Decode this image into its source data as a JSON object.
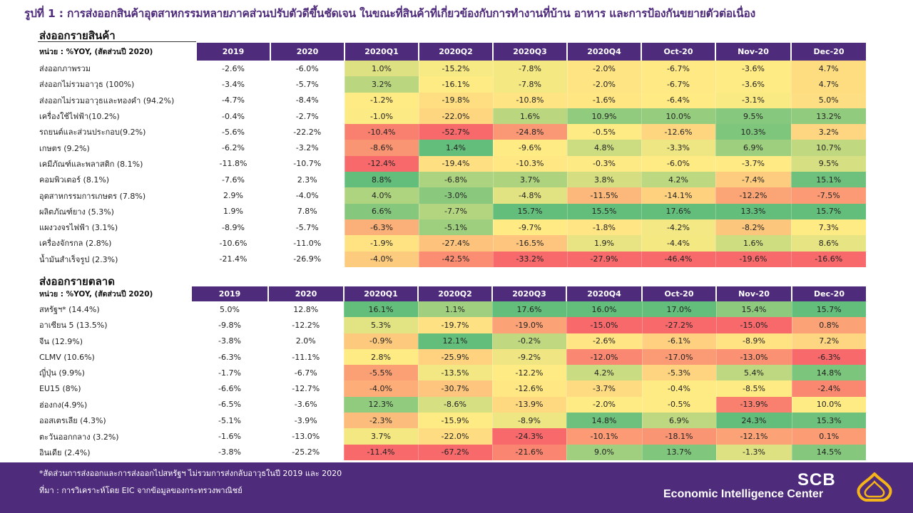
{
  "title": "รูปที่ 1 : การส่งออกสินค้าอุตสาหกรรมหลายภาคส่วนปรับตัวดีขึ้นชัดเจน ในขณะที่สินค้าที่เกี่ยวข้องกับการทำงานที่บ้าน อาหาร และการป้องกันขยายตัวต่อเนื่อง",
  "colors": {
    "brand": "#4f2b7c",
    "high": "#63be7b",
    "mid": "#ffeb84",
    "low": "#f8696b"
  },
  "products": {
    "section_title": "ส่งออกรายสินค้า",
    "unit_label": "หน่วย : %YOY, (สัดส่วนปี 2020)",
    "columns": [
      "2019",
      "2020",
      "2020Q1",
      "2020Q2",
      "2020Q3",
      "2020Q4",
      "Oct-20",
      "Nov-20",
      "Dec-20"
    ],
    "rows": [
      {
        "label": "ส่งออกภาพรวม",
        "values": [
          "-2.6%",
          "-6.0%",
          "1.0%",
          "-15.2%",
          "-7.8%",
          "-2.0%",
          "-6.7%",
          "-3.6%",
          "4.7%"
        ]
      },
      {
        "label": "ส่งออกไม่รวมอาวุธ (100%)",
        "values": [
          "-3.4%",
          "-5.7%",
          "3.2%",
          "-16.1%",
          "-7.8%",
          "-2.0%",
          "-6.7%",
          "-3.6%",
          "4.7%"
        ]
      },
      {
        "label": "ส่งออกไม่รวมอาวุธและทองคำ (94.2%)",
        "values": [
          "-4.7%",
          "-8.4%",
          "-1.2%",
          "-19.8%",
          "-10.8%",
          "-1.6%",
          "-6.4%",
          "-3.1%",
          "5.0%"
        ]
      },
      {
        "label": "เครื่องใช้ไฟฟ้า(10.2%)",
        "values": [
          "-0.4%",
          "-2.7%",
          "-1.0%",
          "-22.0%",
          "1.6%",
          "10.9%",
          "10.0%",
          "9.5%",
          "13.2%"
        ]
      },
      {
        "label": "รถยนต์และส่วนประกอบ(9.2%)",
        "values": [
          "-5.6%",
          "-22.2%",
          "-10.4%",
          "-52.7%",
          "-24.8%",
          "-0.5%",
          "-12.6%",
          "10.3%",
          "3.2%"
        ]
      },
      {
        "label": "เกษตร (9.2%)",
        "values": [
          "-6.2%",
          "-3.2%",
          "-8.6%",
          "1.4%",
          "-9.6%",
          "4.8%",
          "-3.3%",
          "6.9%",
          "10.7%"
        ]
      },
      {
        "label": "เคมีภัณฑ์และพลาสติก (8.1%)",
        "values": [
          "-11.8%",
          "-10.7%",
          "-12.4%",
          "-19.4%",
          "-10.3%",
          "-0.3%",
          "-6.0%",
          "-3.7%",
          "9.5%"
        ]
      },
      {
        "label": "คอมพิวเตอร์ (8.1%)",
        "values": [
          "-7.6%",
          "2.3%",
          "8.8%",
          "-6.8%",
          "3.7%",
          "3.8%",
          "4.2%",
          "-7.4%",
          "15.1%"
        ]
      },
      {
        "label": "อุตสาหกรรมการเกษตร (7.8%)",
        "values": [
          "2.9%",
          "-4.0%",
          "4.0%",
          "-3.0%",
          "-4.8%",
          "-11.5%",
          "-14.1%",
          "-12.2%",
          "-7.5%"
        ]
      },
      {
        "label": "ผลิตภัณฑ์ยาง (5.3%)",
        "values": [
          "1.9%",
          "7.8%",
          "6.6%",
          "-7.7%",
          "15.7%",
          "15.5%",
          "17.6%",
          "13.3%",
          "15.7%"
        ]
      },
      {
        "label": "แผงวงจรไฟฟ้า (3.1%)",
        "values": [
          "-8.9%",
          "-5.7%",
          "-6.3%",
          "-5.1%",
          "-9.7%",
          "-1.8%",
          "-4.2%",
          "-8.2%",
          "7.3%"
        ]
      },
      {
        "label": "เครื่องจักรกล (2.8%)",
        "values": [
          "-10.6%",
          "-11.0%",
          "-1.9%",
          "-27.4%",
          "-16.5%",
          "1.9%",
          "-4.4%",
          "1.6%",
          "8.6%"
        ]
      },
      {
        "label": "น้ำมันสำเร็จรูป (2.3%)",
        "values": [
          "-21.4%",
          "-26.9%",
          "-4.0%",
          "-42.5%",
          "-33.2%",
          "-27.9%",
          "-46.4%",
          "-19.6%",
          "-16.6%"
        ]
      }
    ]
  },
  "markets": {
    "section_title": "ส่งออกรายตลาด",
    "unit_label": "หน่วย : %YOY, (สัดส่วนปี 2020)",
    "columns": [
      "2019",
      "2020",
      "2020Q1",
      "2020Q2",
      "2020Q3",
      "2020Q4",
      "Oct-20",
      "Nov-20",
      "Dec-20"
    ],
    "rows": [
      {
        "label": "สหรัฐฯ* (14.4%)",
        "values": [
          "5.0%",
          "12.8%",
          "16.1%",
          "1.1%",
          "17.6%",
          "16.0%",
          "17.0%",
          "15.4%",
          "15.7%"
        ]
      },
      {
        "label": "อาเซียน 5 (13.5%)",
        "values": [
          "-9.8%",
          "-12.2%",
          "5.3%",
          "-19.7%",
          "-19.0%",
          "-15.0%",
          "-27.2%",
          "-15.0%",
          "0.8%"
        ]
      },
      {
        "label": "จีน (12.9%)",
        "values": [
          "-3.8%",
          "2.0%",
          "-0.9%",
          "12.1%",
          "-0.2%",
          "-2.6%",
          "-6.1%",
          "-8.9%",
          "7.2%"
        ]
      },
      {
        "label": "CLMV (10.6%)",
        "values": [
          "-6.3%",
          "-11.1%",
          "2.8%",
          "-25.9%",
          "-9.2%",
          "-12.0%",
          "-17.0%",
          "-13.0%",
          "-6.3%"
        ]
      },
      {
        "label": "ญี่ปุ่น (9.9%)",
        "values": [
          "-1.7%",
          "-6.7%",
          "-5.5%",
          "-13.5%",
          "-12.2%",
          "4.2%",
          "-5.3%",
          "5.4%",
          "14.8%"
        ]
      },
      {
        "label": "EU15 (8%)",
        "values": [
          "-6.6%",
          "-12.7%",
          "-4.0%",
          "-30.7%",
          "-12.6%",
          "-3.7%",
          "-0.4%",
          "-8.5%",
          "-2.4%"
        ]
      },
      {
        "label": "ฮ่องกง(4.9%)",
        "values": [
          "-6.5%",
          "-3.6%",
          "12.3%",
          "-8.6%",
          "-13.9%",
          "-2.0%",
          "-0.5%",
          "-13.9%",
          "10.0%"
        ]
      },
      {
        "label": "ออสเตรเลีย (4.3%)",
        "values": [
          "-5.1%",
          "-3.9%",
          "-2.3%",
          "-15.9%",
          "-8.9%",
          "14.8%",
          "6.9%",
          "24.3%",
          "15.3%"
        ]
      },
      {
        "label": "ตะวันออกกลาง (3.2%)",
        "values": [
          "-1.6%",
          "-13.0%",
          "3.7%",
          "-22.0%",
          "-24.3%",
          "-10.1%",
          "-18.1%",
          "-12.1%",
          "0.1%"
        ]
      },
      {
        "label": "อินเดีย (2.4%)",
        "values": [
          "-3.8%",
          "-25.2%",
          "-11.4%",
          "-67.2%",
          "-21.6%",
          "9.0%",
          "13.7%",
          "-1.3%",
          "14.5%"
        ]
      }
    ]
  },
  "footer": {
    "note": "*สัดส่วนการส่งออกและการส่งออกไปสหรัฐฯ ไม่รวมการส่งกลับอาวุธในปี 2019 และ 2020",
    "source": "ที่มา : การวิเคราะห์โดย EIC จากข้อมูลของกระทรวงพาณิชย์",
    "logo_text": "SCB",
    "logo_subtitle": "Economic Intelligence Center"
  }
}
